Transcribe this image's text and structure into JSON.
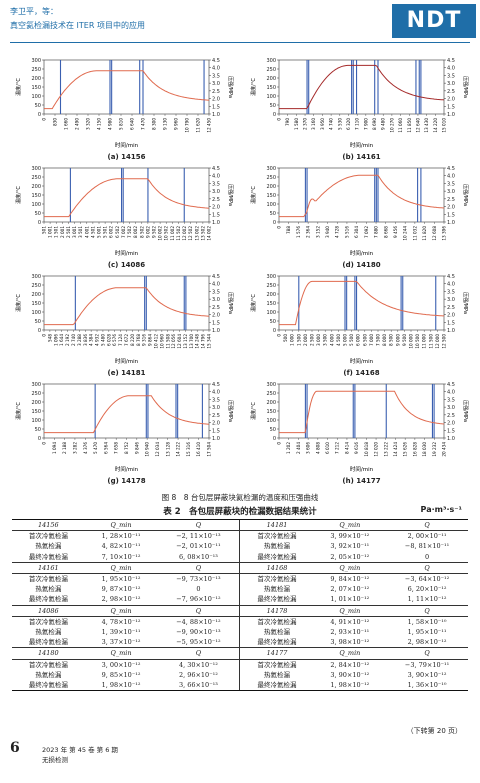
{
  "header": {
    "authors": "李卫平，等：",
    "title": "真空氦检漏技术在 ITER 项目中的应用",
    "logo": "NDT"
  },
  "axis_labels": {
    "x": "时间/min",
    "y_left": "温度/°C",
    "y_right": "压强/MPa"
  },
  "charts": [
    {
      "id": "14156",
      "caption": "(a) 14156",
      "ticks": [
        "0",
        "830",
        "1 660",
        "2 490",
        "3 320",
        "4 150",
        "4 980",
        "5 810",
        "6 640",
        "7 470",
        "8 300",
        "9 130",
        "9 960",
        "10 790",
        "11 620",
        "12 450"
      ],
      "t_rise_start": 0.05,
      "t_plateau": 0.32,
      "t_drop": 0.6,
      "blue": [
        0.1,
        0.4,
        0.41,
        0.58,
        0.6,
        0.97
      ],
      "peak": 240
    },
    {
      "id": "14161",
      "caption": "(b) 14161",
      "ticks": [
        "0",
        "790",
        "1 580",
        "2 370",
        "3 160",
        "3 950",
        "4 740",
        "5 530",
        "6 320",
        "7 110",
        "7 900",
        "8 690",
        "9 480",
        "10 270",
        "11 060",
        "11 850",
        "12 640",
        "13 430",
        "14 220",
        "15 010"
      ],
      "t_rise_start": 0.17,
      "t_plateau": 0.42,
      "t_drop": 0.59,
      "blue": [
        0.17,
        0.18,
        0.44,
        0.45,
        0.47,
        0.58,
        0.6,
        0.83,
        0.85,
        0.86
      ],
      "peak": 270
    },
    {
      "id": "14086",
      "caption": "(c) 14086",
      "ticks": [
        "501",
        "1 001",
        "1 501",
        "2 001",
        "2 501",
        "3 001",
        "3 501",
        "4 001",
        "4 501",
        "5 001",
        "5 501",
        "6 002",
        "6 502",
        "7 002",
        "7 502",
        "8 002",
        "8 502",
        "9 002",
        "9 502",
        "10 002",
        "10 502",
        "11 002",
        "11 502",
        "12 002",
        "12 502",
        "13 002",
        "13 502",
        "14 002"
      ],
      "t_rise_start": 0.15,
      "t_plateau": 0.45,
      "t_drop": 0.63,
      "blue": [
        0.16,
        0.47,
        0.48,
        0.63,
        0.85
      ],
      "peak": 240
    },
    {
      "id": "14180",
      "caption": "(d) 14180",
      "ticks": [
        "0",
        "788",
        "1 576",
        "2 364",
        "3 152",
        "3 940",
        "4 728",
        "5 516",
        "6 304",
        "7 092",
        "7 880",
        "8 668",
        "9 456",
        "10 244",
        "11 032",
        "11 820",
        "12 608",
        "13 396"
      ],
      "t_rise_start": 0.15,
      "t_plateau": 0.5,
      "t_drop": 0.6,
      "blue": [
        0.16,
        0.17,
        0.58,
        0.59,
        0.6,
        0.84,
        0.86
      ],
      "peak": 260,
      "bump": true
    },
    {
      "id": "14181",
      "caption": "(e) 14181",
      "ticks": [
        "0",
        "548",
        "1 096",
        "1 644",
        "2 192",
        "2 740",
        "3 288",
        "3 836",
        "4 384",
        "4 932",
        "5 480",
        "6 028",
        "6 576",
        "7 124",
        "7 672",
        "8 220",
        "8 768",
        "9 316",
        "9 864",
        "10 412",
        "10 960",
        "11 508",
        "12 056",
        "12 604",
        "13 152",
        "13 700",
        "14 248",
        "14 796",
        "15 344"
      ],
      "t_rise_start": 0.18,
      "t_plateau": 0.45,
      "t_drop": 0.62,
      "blue": [
        0.19,
        0.61,
        0.62,
        0.85,
        0.86
      ],
      "peak": 235
    },
    {
      "id": "14168",
      "caption": "(f) 14168",
      "ticks": [
        "0",
        "500",
        "1 000",
        "1 500",
        "2 000",
        "2 500",
        "3 000",
        "3 500",
        "4 000",
        "4 500",
        "5 000",
        "5 500",
        "6 000",
        "6 500",
        "7 000",
        "7 500",
        "8 000",
        "8 500",
        "9 000",
        "9 500",
        "10 000",
        "10 500",
        "11 000",
        "11 500",
        "12 000",
        "12 500"
      ],
      "t_rise_start": 0.1,
      "t_plateau": 0.2,
      "t_drop": 0.47,
      "blue": [
        0.12,
        0.4,
        0.41,
        0.46,
        0.47,
        0.74,
        0.75,
        0.95
      ],
      "peak": 270
    },
    {
      "id": "14178",
      "caption": "(g) 14178",
      "ticks": [
        "0",
        "1 094",
        "2 188",
        "3 282",
        "4 376",
        "5 470",
        "6 564",
        "7 658",
        "8 752",
        "9 846",
        "10 940",
        "12 034",
        "13 128",
        "14 222",
        "15 316",
        "16 410",
        "17 504"
      ],
      "t_rise_start": 0.3,
      "t_plateau": 0.52,
      "t_drop": 0.65,
      "blue": [
        0.31,
        0.62,
        0.63,
        0.8,
        0.81,
        0.96
      ],
      "peak": 235
    },
    {
      "id": "14177",
      "caption": "(h) 14177",
      "ticks": [
        "0",
        "1 202",
        "2 404",
        "3 606",
        "4 808",
        "6 010",
        "7 212",
        "8 414",
        "9 616",
        "10 818",
        "12 020",
        "13 222",
        "14 424",
        "15 626",
        "16 828",
        "18 030",
        "19 232",
        "20 434"
      ],
      "t_rise_start": 0.16,
      "t_plateau": 0.23,
      "t_drop": 0.7,
      "blue": [
        0.16,
        0.17,
        0.45,
        0.46,
        0.65,
        0.93,
        0.94
      ],
      "peak": 260
    }
  ],
  "figure_caption": "图 8　8 台包层屏蔽块氦检漏的温度和压强曲线",
  "table": {
    "title": "表 2　各包层屏蔽块的检漏数据结果统计",
    "unit": "Pa·m³·s⁻¹",
    "blocks": [
      {
        "left_id": "14156",
        "right_id": "14181",
        "rows": [
          [
            "首次冷氦检漏",
            "1, 28×10⁻¹¹",
            "−2, 11×10⁻¹³",
            "首次冷氦检漏",
            "3, 99×10⁻¹²",
            "2, 00×10⁻¹¹"
          ],
          [
            "热氦检漏",
            "4, 82×10⁻¹¹",
            "−2, 01×10⁻¹¹",
            "热氦检漏",
            "3, 92×10⁻¹¹",
            "−8, 81×10⁻¹¹"
          ],
          [
            "最终冷氦检漏",
            "7, 10×10⁻¹²",
            "6, 08×10⁻¹³",
            "最终冷氦检漏",
            "2, 05×10⁻¹²",
            "0"
          ]
        ]
      },
      {
        "left_id": "14161",
        "right_id": "14168",
        "rows": [
          [
            "首次冷氦检漏",
            "1, 95×10⁻¹²",
            "−9, 73×10⁻¹³",
            "首次冷氦检漏",
            "9, 84×10⁻¹²",
            "−3, 64×10⁻¹²"
          ],
          [
            "热氦检漏",
            "9, 87×10⁻¹²",
            "0",
            "热氦检漏",
            "2, 07×10⁻¹²",
            "6, 20×10⁻¹²"
          ],
          [
            "最终冷氦检漏",
            "2, 98×10⁻¹²",
            "−7, 96×10⁻¹²",
            "最终冷氦检漏",
            "1, 01×10⁻¹²",
            "1, 11×10⁻¹²"
          ]
        ]
      },
      {
        "left_id": "14086",
        "right_id": "14178",
        "rows": [
          [
            "首次冷氦检漏",
            "4, 78×10⁻¹²",
            "−4, 88×10⁻¹²",
            "首次冷氦检漏",
            "4, 91×10⁻¹²",
            "1, 58×10⁻¹⁰"
          ],
          [
            "热氦检漏",
            "1, 39×10⁻¹¹",
            "−9, 90×10⁻¹³",
            "热氦检漏",
            "2, 93×10⁻¹¹",
            "1, 95×10⁻¹¹"
          ],
          [
            "最终冷氦检漏",
            "3, 37×10⁻¹²",
            "−5, 95×10⁻¹²",
            "最终冷氦检漏",
            "3, 98×10⁻¹²",
            "2, 98×10⁻¹²"
          ]
        ]
      },
      {
        "left_id": "14180",
        "right_id": "14177",
        "rows": [
          [
            "首次冷氦检漏",
            "3, 00×10⁻¹²",
            "4, 30×10⁻¹²",
            "首次冷氦检漏",
            "2, 84×10⁻¹²",
            "−3, 79×10⁻¹¹"
          ],
          [
            "热氦检漏",
            "9, 85×10⁻¹²",
            "2, 96×10⁻¹²",
            "热氦检漏",
            "3, 90×10⁻¹²",
            "3, 90×10⁻¹²"
          ],
          [
            "最终冷氦检漏",
            "1, 98×10⁻¹²",
            "3, 66×10⁻¹³",
            "最终冷氦检漏",
            "1, 98×10⁻¹²",
            "1, 36×10⁻¹⁰"
          ]
        ]
      }
    ],
    "col_q_min": "Q_min",
    "col_q": "Q"
  },
  "continued_note": "（下转第 20 页）",
  "footer": {
    "page_number": "6",
    "issue": "2023 年 第 45 卷 第 6 期",
    "journal": "无损检测"
  },
  "colors": {
    "brand": "#1f6ea8",
    "temp_line": "#e06a4e",
    "temp_line_dark": "#a52a2a",
    "event_line": "#3a5fb0"
  }
}
